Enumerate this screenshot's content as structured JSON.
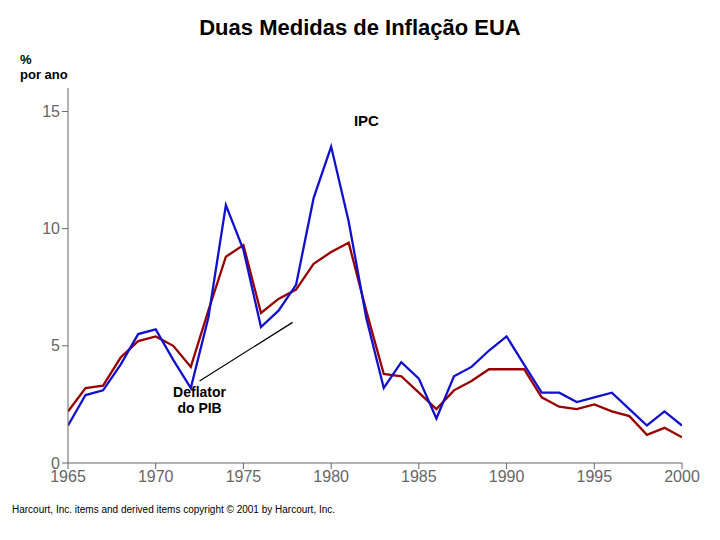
{
  "chart_data": {
    "type": "line",
    "title": "Duas Medidas de Inflação EUA",
    "ylabel": "%\npor ano",
    "footnote": "Harcourt, Inc. items and derived items copyright © 2001 by Harcourt, Inc.",
    "x": [
      1965,
      1966,
      1967,
      1968,
      1969,
      1970,
      1971,
      1972,
      1973,
      1974,
      1975,
      1976,
      1977,
      1978,
      1979,
      1980,
      1981,
      1982,
      1983,
      1984,
      1985,
      1986,
      1987,
      1988,
      1989,
      1990,
      1991,
      1992,
      1993,
      1994,
      1995,
      1996,
      1997,
      1998,
      1999,
      2000
    ],
    "series": [
      {
        "color": "#990000",
        "values": [
          2.2,
          3.2,
          3.3,
          4.5,
          5.2,
          5.4,
          5.0,
          4.1,
          6.5,
          8.8,
          9.3,
          6.4,
          7.0,
          7.4,
          8.5,
          9.0,
          9.4,
          6.5,
          3.8,
          3.7,
          3.0,
          2.3,
          3.1,
          3.5,
          4.0,
          4.0,
          4.0,
          2.8,
          2.4,
          2.3,
          2.5,
          2.2,
          2.0,
          1.2,
          1.5,
          1.1
        ]
      },
      {
        "color": "#1111CC",
        "values": [
          1.6,
          2.9,
          3.1,
          4.2,
          5.5,
          5.7,
          4.4,
          3.2,
          6.2,
          11.0,
          9.1,
          5.8,
          6.5,
          7.6,
          11.3,
          13.5,
          10.3,
          6.2,
          3.2,
          4.3,
          3.6,
          1.9,
          3.7,
          4.1,
          4.8,
          5.4,
          4.2,
          3.0,
          3.0,
          2.6,
          2.8,
          3.0,
          2.3,
          1.6,
          2.2,
          1.6
        ]
      }
    ],
    "annotations": [
      {
        "text": "IPC",
        "x": 1981.3,
        "y": 14.2
      },
      {
        "text": "Deflator\ndo PIB",
        "x": 1972.5,
        "y": 3.5,
        "arrow_x": 1977.8,
        "arrow_y": 6.0
      }
    ],
    "xlim": [
      1965,
      2000
    ],
    "xticks": [
      1965,
      1970,
      1975,
      1980,
      1985,
      1990,
      1995,
      2000
    ],
    "ylim": [
      0,
      16
    ],
    "yticks": [
      0,
      5,
      10,
      15
    ],
    "grid": false
  }
}
